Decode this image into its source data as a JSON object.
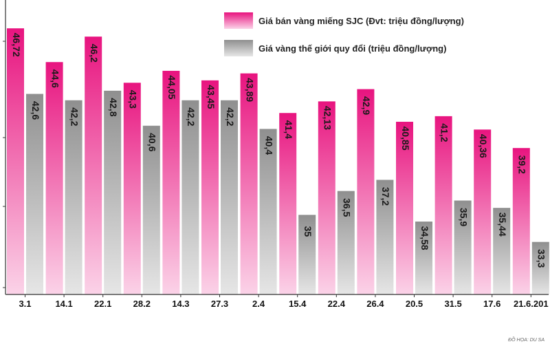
{
  "chart_data": {
    "type": "bar",
    "categories": [
      "3.1",
      "14.1",
      "22.1",
      "28.2",
      "14.3",
      "27.3",
      "2.4",
      "15.4",
      "22.4",
      "26.4",
      "20.5",
      "31.5",
      "17.6",
      "21.6.201"
    ],
    "series": [
      {
        "name": "Giá bán vàng miếng SJC (Đvt: triệu đồng/lượng)",
        "color": "#ec1e8c",
        "values": [
          46.72,
          44.6,
          46.2,
          43.3,
          44.05,
          43.45,
          43.89,
          41.4,
          42.13,
          42.9,
          40.85,
          41.2,
          40.36,
          39.2
        ],
        "labels": [
          "46,72",
          "44,6",
          "46,2",
          "43,3",
          "44,05",
          "43,45",
          "43,89",
          "41,4",
          "42,13",
          "42,9",
          "40,85",
          "41,2",
          "40,36",
          "39,2"
        ]
      },
      {
        "name": "Giá vàng thế giới quy đổi (triệu đồng/lượng)",
        "color": "#a3a3a3",
        "values": [
          42.6,
          42.2,
          42.8,
          40.6,
          42.2,
          42.2,
          40.4,
          35,
          36.5,
          37.2,
          34.58,
          35.9,
          35.44,
          33.3
        ],
        "labels": [
          "42,6",
          "42,2",
          "42,8",
          "40,6",
          "42,2",
          "42,2",
          "40,4",
          "35",
          "36,5",
          "37,2",
          "34,58",
          "35,9",
          "35,44",
          "33,3"
        ]
      }
    ],
    "ylim": [
      30,
      48.5
    ],
    "legend_position": "top-right",
    "grid": false
  },
  "credit": "ĐỒ HỌA: DU SA"
}
